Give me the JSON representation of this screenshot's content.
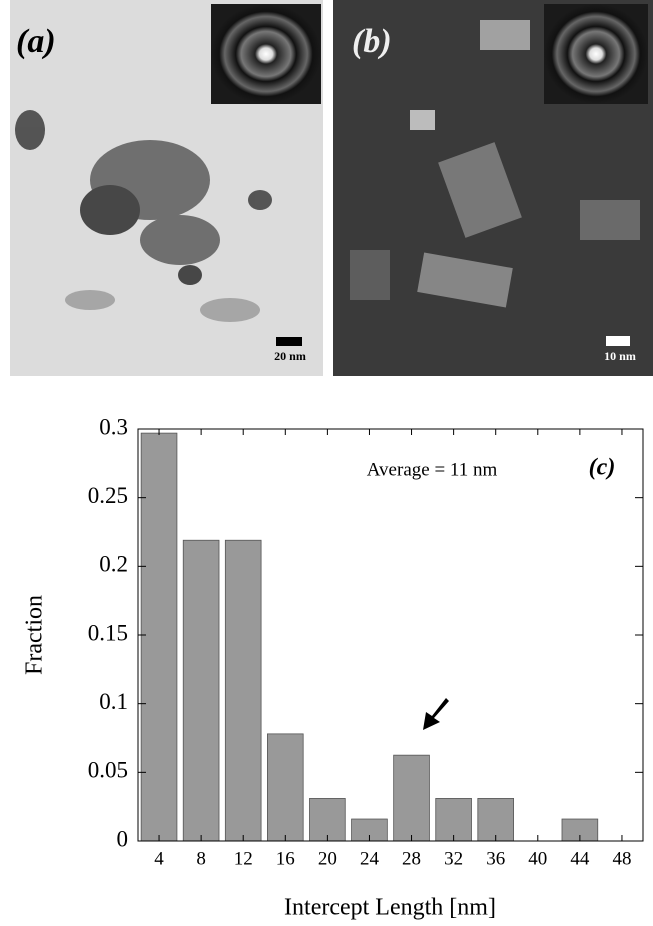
{
  "micrographs": [
    {
      "label": "(a)",
      "scale_bar": "20 nm"
    },
    {
      "label": "(b)",
      "scale_bar": "10 nm"
    }
  ],
  "chart_data": {
    "type": "bar",
    "annotation": "Average = 11 nm",
    "panel_label": "(c)",
    "x_label": "Intercept Length [nm]",
    "y_label": "Fraction",
    "x": [
      4,
      8,
      12,
      16,
      20,
      24,
      28,
      32,
      36,
      40,
      44,
      48
    ],
    "values": [
      0.297,
      0.219,
      0.219,
      0.078,
      0.031,
      0.016,
      0.0625,
      0.031,
      0.031,
      0,
      0.016,
      0
    ],
    "color": "#999999",
    "xlim": [
      2,
      50
    ],
    "xticks": [
      4,
      8,
      12,
      16,
      20,
      24,
      28,
      32,
      36,
      40,
      44,
      48
    ],
    "ylim": [
      0,
      0.3
    ],
    "yticks": [
      0,
      0.05,
      0.1,
      0.15,
      0.2,
      0.25,
      0.3
    ]
  }
}
